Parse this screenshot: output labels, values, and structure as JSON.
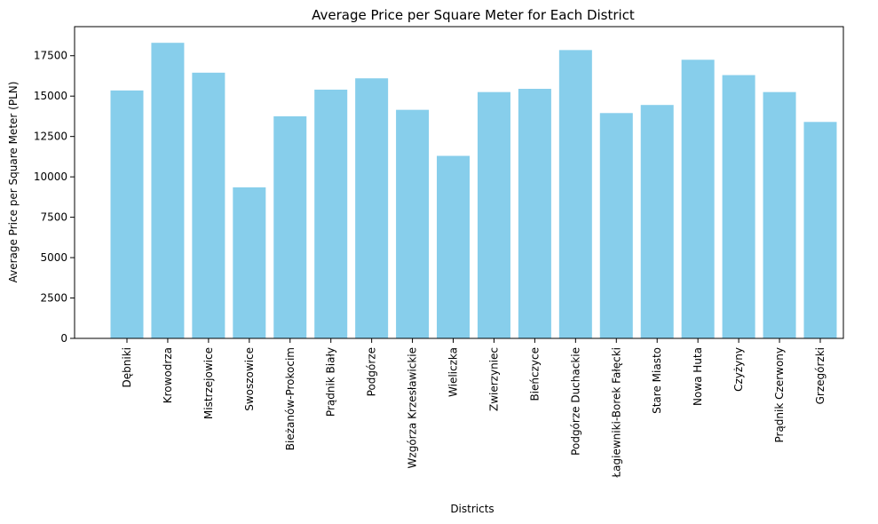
{
  "chart_data": {
    "type": "bar",
    "title": "Average Price per Square Meter for Each District",
    "xlabel": "Districts",
    "ylabel": "Average Price per Square Meter (PLN)",
    "ylim": [
      0,
      19300
    ],
    "yticks": [
      0,
      2500,
      5000,
      7500,
      10000,
      12500,
      15000,
      17500
    ],
    "bar_color": "#87ceeb",
    "grid": false,
    "categories": [
      "Dębniki",
      "Krowodrza",
      "Mistrzejowice",
      "Swoszowice",
      "Bieżanów-Prokocim",
      "Prądnik Biały",
      "Podgórze",
      "Wzgórza Krzesławickie",
      "Wieliczka",
      "Zwierzyniec",
      "Bieńczyce",
      "Podgórze Duchackie",
      "Łagiewniki-Borek Fałęcki",
      "Stare Miasto",
      "Nowa Huta",
      "Czyżyny",
      "Prądnik Czerwony",
      "Grzegórzki"
    ],
    "values": [
      15350,
      18300,
      16450,
      9350,
      13750,
      15400,
      16100,
      14150,
      11300,
      15250,
      15450,
      17850,
      13950,
      14450,
      17250,
      16300,
      15250,
      13400
    ]
  }
}
